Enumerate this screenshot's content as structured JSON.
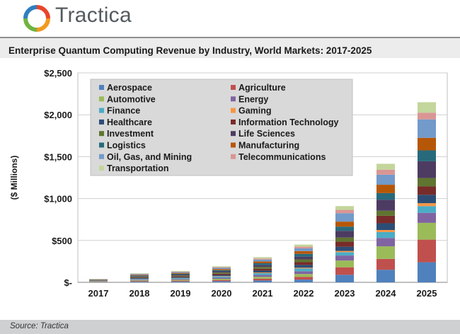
{
  "brand": {
    "logo_text": "Tractica",
    "logo_colors": [
      "#e8452c",
      "#f29a1f",
      "#6fb43f",
      "#2f7fc1"
    ]
  },
  "chart_data": {
    "type": "bar",
    "stacked": true,
    "title": "Enterprise Quantum Computing Revenue by Industry, World Markets: 2017-2025",
    "ylabel": "($ Millions)",
    "xlabel": "",
    "ylim": [
      0,
      2500
    ],
    "yticks": [
      0,
      500,
      1000,
      1500,
      2000,
      2500
    ],
    "ytick_labels": [
      "$-",
      "$500",
      "$1,000",
      "$1,500",
      "$2,000",
      "$2,500"
    ],
    "grid": true,
    "legend_position": "top-left, inside plot",
    "categories": [
      "2017",
      "2018",
      "2019",
      "2020",
      "2021",
      "2022",
      "2023",
      "2024",
      "2025"
    ],
    "series": [
      {
        "name": "Aerospace",
        "color": "#4f81bd",
        "values": [
          3,
          8,
          10,
          14,
          22,
          33,
          90,
          150,
          240
        ]
      },
      {
        "name": "Agriculture",
        "color": "#c0504d",
        "values": [
          3,
          8,
          10,
          14,
          22,
          33,
          90,
          130,
          270
        ]
      },
      {
        "name": "Automotive",
        "color": "#9bbb59",
        "values": [
          3,
          8,
          10,
          14,
          22,
          33,
          80,
          150,
          200
        ]
      },
      {
        "name": "Energy",
        "color": "#8064a2",
        "values": [
          3,
          8,
          10,
          14,
          22,
          33,
          60,
          100,
          120
        ]
      },
      {
        "name": "Finance",
        "color": "#4bacc6",
        "values": [
          3,
          8,
          10,
          14,
          22,
          33,
          40,
          70,
          80
        ]
      },
      {
        "name": "Gaming",
        "color": "#f79646",
        "values": [
          1,
          2,
          3,
          5,
          8,
          10,
          15,
          25,
          35
        ]
      },
      {
        "name": "Healthcare",
        "color": "#2c4d75",
        "values": [
          3,
          8,
          10,
          14,
          22,
          33,
          50,
          80,
          100
        ]
      },
      {
        "name": "Information Technology",
        "color": "#772c2a",
        "values": [
          3,
          8,
          10,
          14,
          22,
          33,
          60,
          90,
          100
        ]
      },
      {
        "name": "Investment",
        "color": "#5f7530",
        "values": [
          3,
          8,
          10,
          14,
          22,
          33,
          50,
          60,
          100
        ]
      },
      {
        "name": "Life Sciences",
        "color": "#4d3b62",
        "values": [
          3,
          8,
          10,
          14,
          22,
          33,
          80,
          130,
          200
        ]
      },
      {
        "name": "Logistics",
        "color": "#276a7c",
        "values": [
          3,
          8,
          10,
          14,
          22,
          33,
          50,
          80,
          130
        ]
      },
      {
        "name": "Manufacturing",
        "color": "#b65708",
        "values": [
          3,
          8,
          10,
          14,
          22,
          33,
          60,
          100,
          150
        ]
      },
      {
        "name": "Oil, Gas, and Mining",
        "color": "#729aca",
        "values": [
          3,
          8,
          10,
          14,
          22,
          33,
          100,
          120,
          220
        ]
      },
      {
        "name": "Telecommunications",
        "color": "#d99694",
        "values": [
          2,
          4,
          5,
          8,
          12,
          20,
          40,
          60,
          80
        ]
      },
      {
        "name": "Transportation",
        "color": "#c3d69b",
        "values": [
          3,
          6,
          8,
          11,
          17,
          25,
          45,
          70,
          125
        ]
      }
    ]
  },
  "source": "Source: Tractica"
}
